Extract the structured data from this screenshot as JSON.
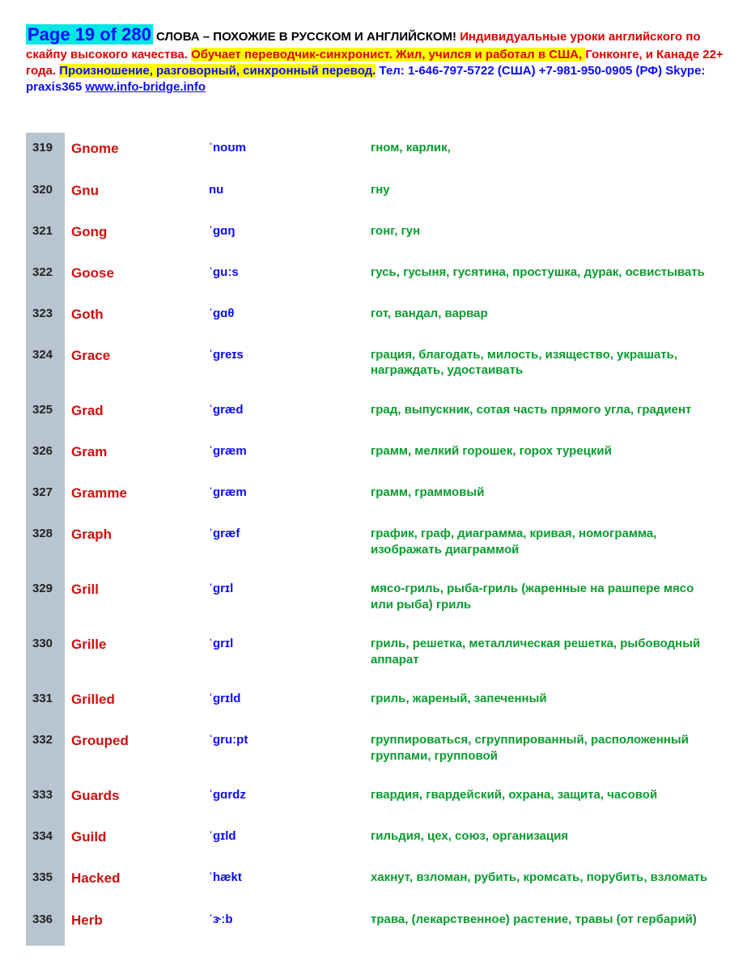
{
  "header": {
    "page_label": "Page 19 of 280",
    "black1": " СЛОВА – ПОХОЖИЕ В РУССКОМ И АНГЛИЙСКОМ! ",
    "red1": "Индивидуальные уроки английского по скайпу высокого качества. ",
    "hl_red": "Обучает переводчик-синхронист. Жил,   учился и работал в США, ",
    "red2": "Гонконге, и Канаде 22+ года. ",
    "hl_blue": "Произношение, разговорный, синхронный перевод.",
    "blue1": " Тел: 1-646-797-5722 (США)     +7-981-950-0905 (РФ) Skype: praxis365   ",
    "link": "www.info-bridge.info"
  },
  "colors": {
    "page_label_bg": "#00e6e6",
    "page_label_fg": "#0a0aff",
    "highlight_bg": "#ffff00",
    "num_bg": "#b8c5d0",
    "word_color": "#cc1111",
    "phon_color": "#0a0aff",
    "trans_color": "#0a9c2e",
    "red": "#e00000",
    "blue": "#0a0aff",
    "black": "#000000",
    "link": "#0a0aff"
  },
  "columns": [
    "num",
    "word",
    "phonetic",
    "translation"
  ],
  "rows": [
    {
      "num": "319",
      "word": "Gnome",
      "phon": "ˈnoʊm",
      "trans": "гном, карлик,"
    },
    {
      "num": "320",
      "word": "Gnu",
      "phon": "nu",
      "trans": "гну"
    },
    {
      "num": "321",
      "word": "Gong",
      "phon": "ˈɡɑŋ",
      "trans": "гонг, гун"
    },
    {
      "num": "322",
      "word": "Goose",
      "phon": "ˈɡuːs",
      "trans": "гусь, гусыня, гусятина, простушка, дурак, освистывать"
    },
    {
      "num": "323",
      "word": "Goth",
      "phon": "ˈɡɑθ",
      "trans": "гот, вандал, варвар"
    },
    {
      "num": "324",
      "word": "Grace",
      "phon": "ˈɡreɪs",
      "trans": "грация, благодать, милость, изящество, украшать, награждать, удостаивать"
    },
    {
      "num": "325",
      "word": "Grad",
      "phon": "ˈɡræd",
      "trans": "град, выпускник, сотая часть прямого угла, градиент"
    },
    {
      "num": "326",
      "word": "Gram",
      "phon": "ˈɡræm",
      "trans": "грамм, мелкий горошек, горох турецкий"
    },
    {
      "num": "327",
      "word": "Gramme",
      "phon": "ˈɡræm",
      "trans": "грамм, граммовый"
    },
    {
      "num": "328",
      "word": "Graph",
      "phon": "ˈɡræf",
      "trans": "график, граф, диаграмма, кривая, номограмма, изображать диаграммой"
    },
    {
      "num": "329",
      "word": "Grill",
      "phon": "ˈɡrɪl",
      "trans": "мясо-гриль, рыба-гриль (жаренные на рашпере мясо или рыба) гриль"
    },
    {
      "num": "330",
      "word": "Grille",
      "phon": "ˈɡrɪl",
      "trans": "гриль, решетка, металлическая решетка, рыбоводный аппарат"
    },
    {
      "num": "331",
      "word": "Grilled",
      "phon": "ˈɡrɪld",
      "trans": "гриль, жареный, запеченный"
    },
    {
      "num": "332",
      "word": "Grouped",
      "phon": "ˈɡruːpt",
      "trans": "группироваться, сгруппированный, расположенный группами, групповой"
    },
    {
      "num": "333",
      "word": "Guards",
      "phon": "ˈɡɑrdz",
      "trans": "гвардия, гвардейский, охрана, защита, часовой"
    },
    {
      "num": "334",
      "word": "Guild",
      "phon": "ˈɡɪld",
      "trans": "гильдия, цех, союз, организация"
    },
    {
      "num": "335",
      "word": "Hacked",
      "phon": "ˈhækt",
      "trans": "хакнут, взломан, рубить, кромсать, порубить, взломать"
    },
    {
      "num": "336",
      "word": "Herb",
      "phon": "ˈɝːb",
      "trans": "трава, (лекарственное) растение, травы (от гербарий)"
    }
  ]
}
